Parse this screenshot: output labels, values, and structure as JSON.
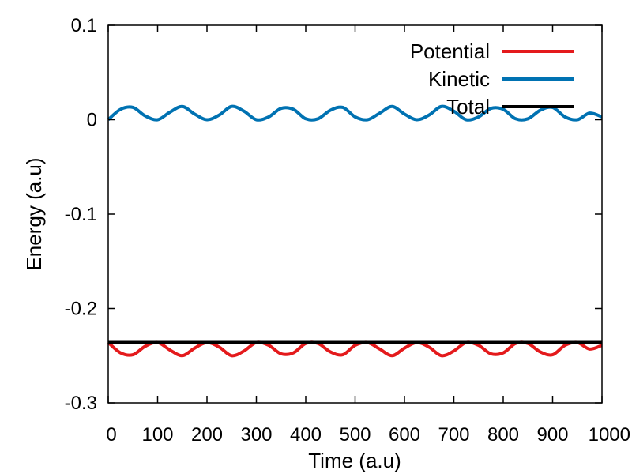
{
  "chart_data": {
    "type": "line",
    "title": "",
    "xlabel": "Time (a.u)",
    "ylabel": "Energy (a.u)",
    "xlim": [
      0,
      1000
    ],
    "ylim": [
      -0.3,
      0.1
    ],
    "xticks": [
      0,
      100,
      200,
      300,
      400,
      500,
      600,
      700,
      800,
      900,
      1000
    ],
    "yticks": [
      0.1,
      0,
      -0.1,
      -0.2,
      -0.3
    ],
    "xtick_labels": [
      "0",
      "100",
      "200",
      "300",
      "400",
      "500",
      "600",
      "700",
      "800",
      "900",
      "1000"
    ],
    "ytick_labels": [
      "0.1",
      "0",
      "-0.1",
      "-0.2",
      "-0.3"
    ],
    "grid": false,
    "legend_position": "top-right",
    "series": [
      {
        "name": "Potential",
        "color": "#e41a1c",
        "x": [
          0,
          25,
          50,
          75,
          100,
          125,
          150,
          175,
          200,
          225,
          250,
          275,
          300,
          325,
          350,
          375,
          400,
          425,
          450,
          475,
          500,
          525,
          550,
          575,
          600,
          625,
          650,
          675,
          700,
          725,
          750,
          775,
          800,
          825,
          850,
          875,
          900,
          925,
          950,
          975,
          1000
        ],
        "values": [
          -0.236,
          -0.247,
          -0.249,
          -0.24,
          -0.236,
          -0.244,
          -0.25,
          -0.242,
          -0.236,
          -0.241,
          -0.25,
          -0.245,
          -0.236,
          -0.239,
          -0.248,
          -0.247,
          -0.237,
          -0.237,
          -0.246,
          -0.249,
          -0.239,
          -0.236,
          -0.243,
          -0.25,
          -0.242,
          -0.236,
          -0.241,
          -0.25,
          -0.245,
          -0.236,
          -0.239,
          -0.248,
          -0.247,
          -0.237,
          -0.237,
          -0.246,
          -0.249,
          -0.239,
          -0.236,
          -0.243,
          -0.239
        ]
      },
      {
        "name": "Kinetic",
        "color": "#0072b2",
        "x": [
          0,
          25,
          50,
          75,
          100,
          125,
          150,
          175,
          200,
          225,
          250,
          275,
          300,
          325,
          350,
          375,
          400,
          425,
          450,
          475,
          500,
          525,
          550,
          575,
          600,
          625,
          650,
          675,
          700,
          725,
          750,
          775,
          800,
          825,
          850,
          875,
          900,
          925,
          950,
          975,
          1000
        ],
        "values": [
          0.0,
          0.011,
          0.013,
          0.004,
          0.0,
          0.008,
          0.014,
          0.006,
          0.0,
          0.005,
          0.014,
          0.009,
          0.0,
          0.003,
          0.012,
          0.011,
          0.001,
          0.001,
          0.01,
          0.013,
          0.003,
          0.0,
          0.007,
          0.014,
          0.006,
          0.0,
          0.005,
          0.014,
          0.009,
          0.0,
          0.003,
          0.012,
          0.011,
          0.001,
          0.001,
          0.01,
          0.013,
          0.003,
          0.0,
          0.007,
          0.003
        ]
      },
      {
        "name": "Total",
        "color": "#000000",
        "x": [
          0,
          1000
        ],
        "values": [
          -0.236,
          -0.236
        ]
      }
    ]
  }
}
